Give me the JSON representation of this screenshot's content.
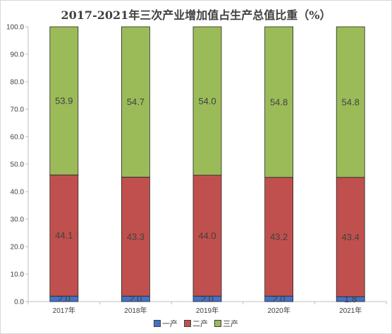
{
  "chart_data": {
    "type": "bar",
    "stacked": true,
    "title": "2017-2021年三次产业增加值占生产总值比重（%）",
    "categories": [
      "2017年",
      "2018年",
      "2019年",
      "2020年",
      "2021年"
    ],
    "series": [
      {
        "name": "一产",
        "color": "#4472c4",
        "values": [
          2.0,
          2.0,
          2.0,
          2.0,
          1.8
        ]
      },
      {
        "name": "二产",
        "color": "#c0504d",
        "values": [
          44.1,
          43.3,
          44.0,
          43.2,
          43.4
        ]
      },
      {
        "name": "三产",
        "color": "#9bbb59",
        "values": [
          53.9,
          54.7,
          54.0,
          54.8,
          54.8
        ]
      }
    ],
    "labels_shown": [
      [
        "2.0",
        "2.0",
        "2.0",
        "2.0",
        "1.8"
      ],
      [
        "44.1",
        "43.3",
        "44.0",
        "43.2",
        "43.4"
      ],
      [
        "53.9",
        "54.7",
        "54.0",
        "54.8",
        "54.8"
      ]
    ],
    "yticks": [
      "0.0",
      "10.0",
      "20.0",
      "30.0",
      "40.0",
      "50.0",
      "60.0",
      "70.0",
      "80.0",
      "90.0",
      "100.0"
    ],
    "ylim": [
      0,
      100
    ],
    "xlabel": "",
    "ylabel": "",
    "grid": false,
    "legend": "bottom"
  }
}
